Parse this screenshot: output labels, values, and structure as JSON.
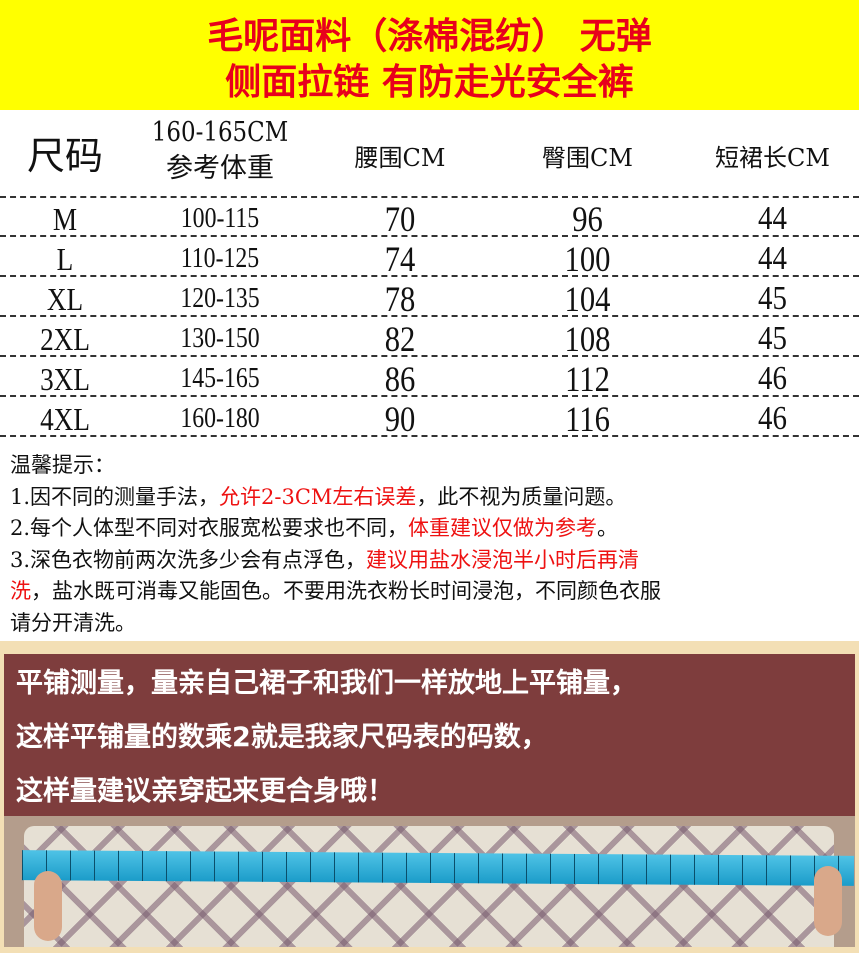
{
  "banner": {
    "line1": "毛呢面料（涤棉混纺） 无弹",
    "line2": "侧面拉链 有防走光安全裤",
    "bg_color": "#ffff00",
    "text_color": "#e8001c"
  },
  "table": {
    "headers": {
      "size": "尺码",
      "weight_line1": "160-165CM",
      "weight_line2": "参考体重",
      "waist": "腰围CM",
      "hip": "臀围CM",
      "length": "短裙长CM"
    },
    "rows": [
      [
        "M",
        "100-115",
        "70",
        "96",
        "44"
      ],
      [
        "L",
        "110-125",
        "74",
        "100",
        "44"
      ],
      [
        "XL",
        "120-135",
        "78",
        "104",
        "45"
      ],
      [
        "2XL",
        "130-150",
        "82",
        "108",
        "45"
      ],
      [
        "3XL",
        "145-165",
        "86",
        "112",
        "46"
      ],
      [
        "4XL",
        "160-180",
        "90",
        "116",
        "46"
      ]
    ]
  },
  "notes": {
    "title": "温馨提示：",
    "n1_a": "1.因不同的测量手法，",
    "n1_red": "允许2-3CM左右误差",
    "n1_b": "，此不视为质量问题。",
    "n2_a": "2.每个人体型不同对衣服宽松要求也不同，",
    "n2_red": "体重建议仅做为参考",
    "n2_b": "。",
    "n3_a": "3.深色衣物前两次洗多少会有点浮色，",
    "n3_red1": "建议用盐水浸泡半小时后再清",
    "n3_red2": "洗",
    "n3_b": "，盐水既可消毒又能固色。不要用洗衣粉长时间浸泡，不同颜色衣服",
    "n3_c": "请分开清洗。"
  },
  "measure": {
    "line1": "平铺测量，量亲自己裙子和我们一样放地上平铺量，",
    "line2": "这样平铺量的数乘2就是我家尺码表的码数，",
    "line3": "这样量建议亲穿起来更合身哦！",
    "panel_color": "#7e3d3d"
  }
}
